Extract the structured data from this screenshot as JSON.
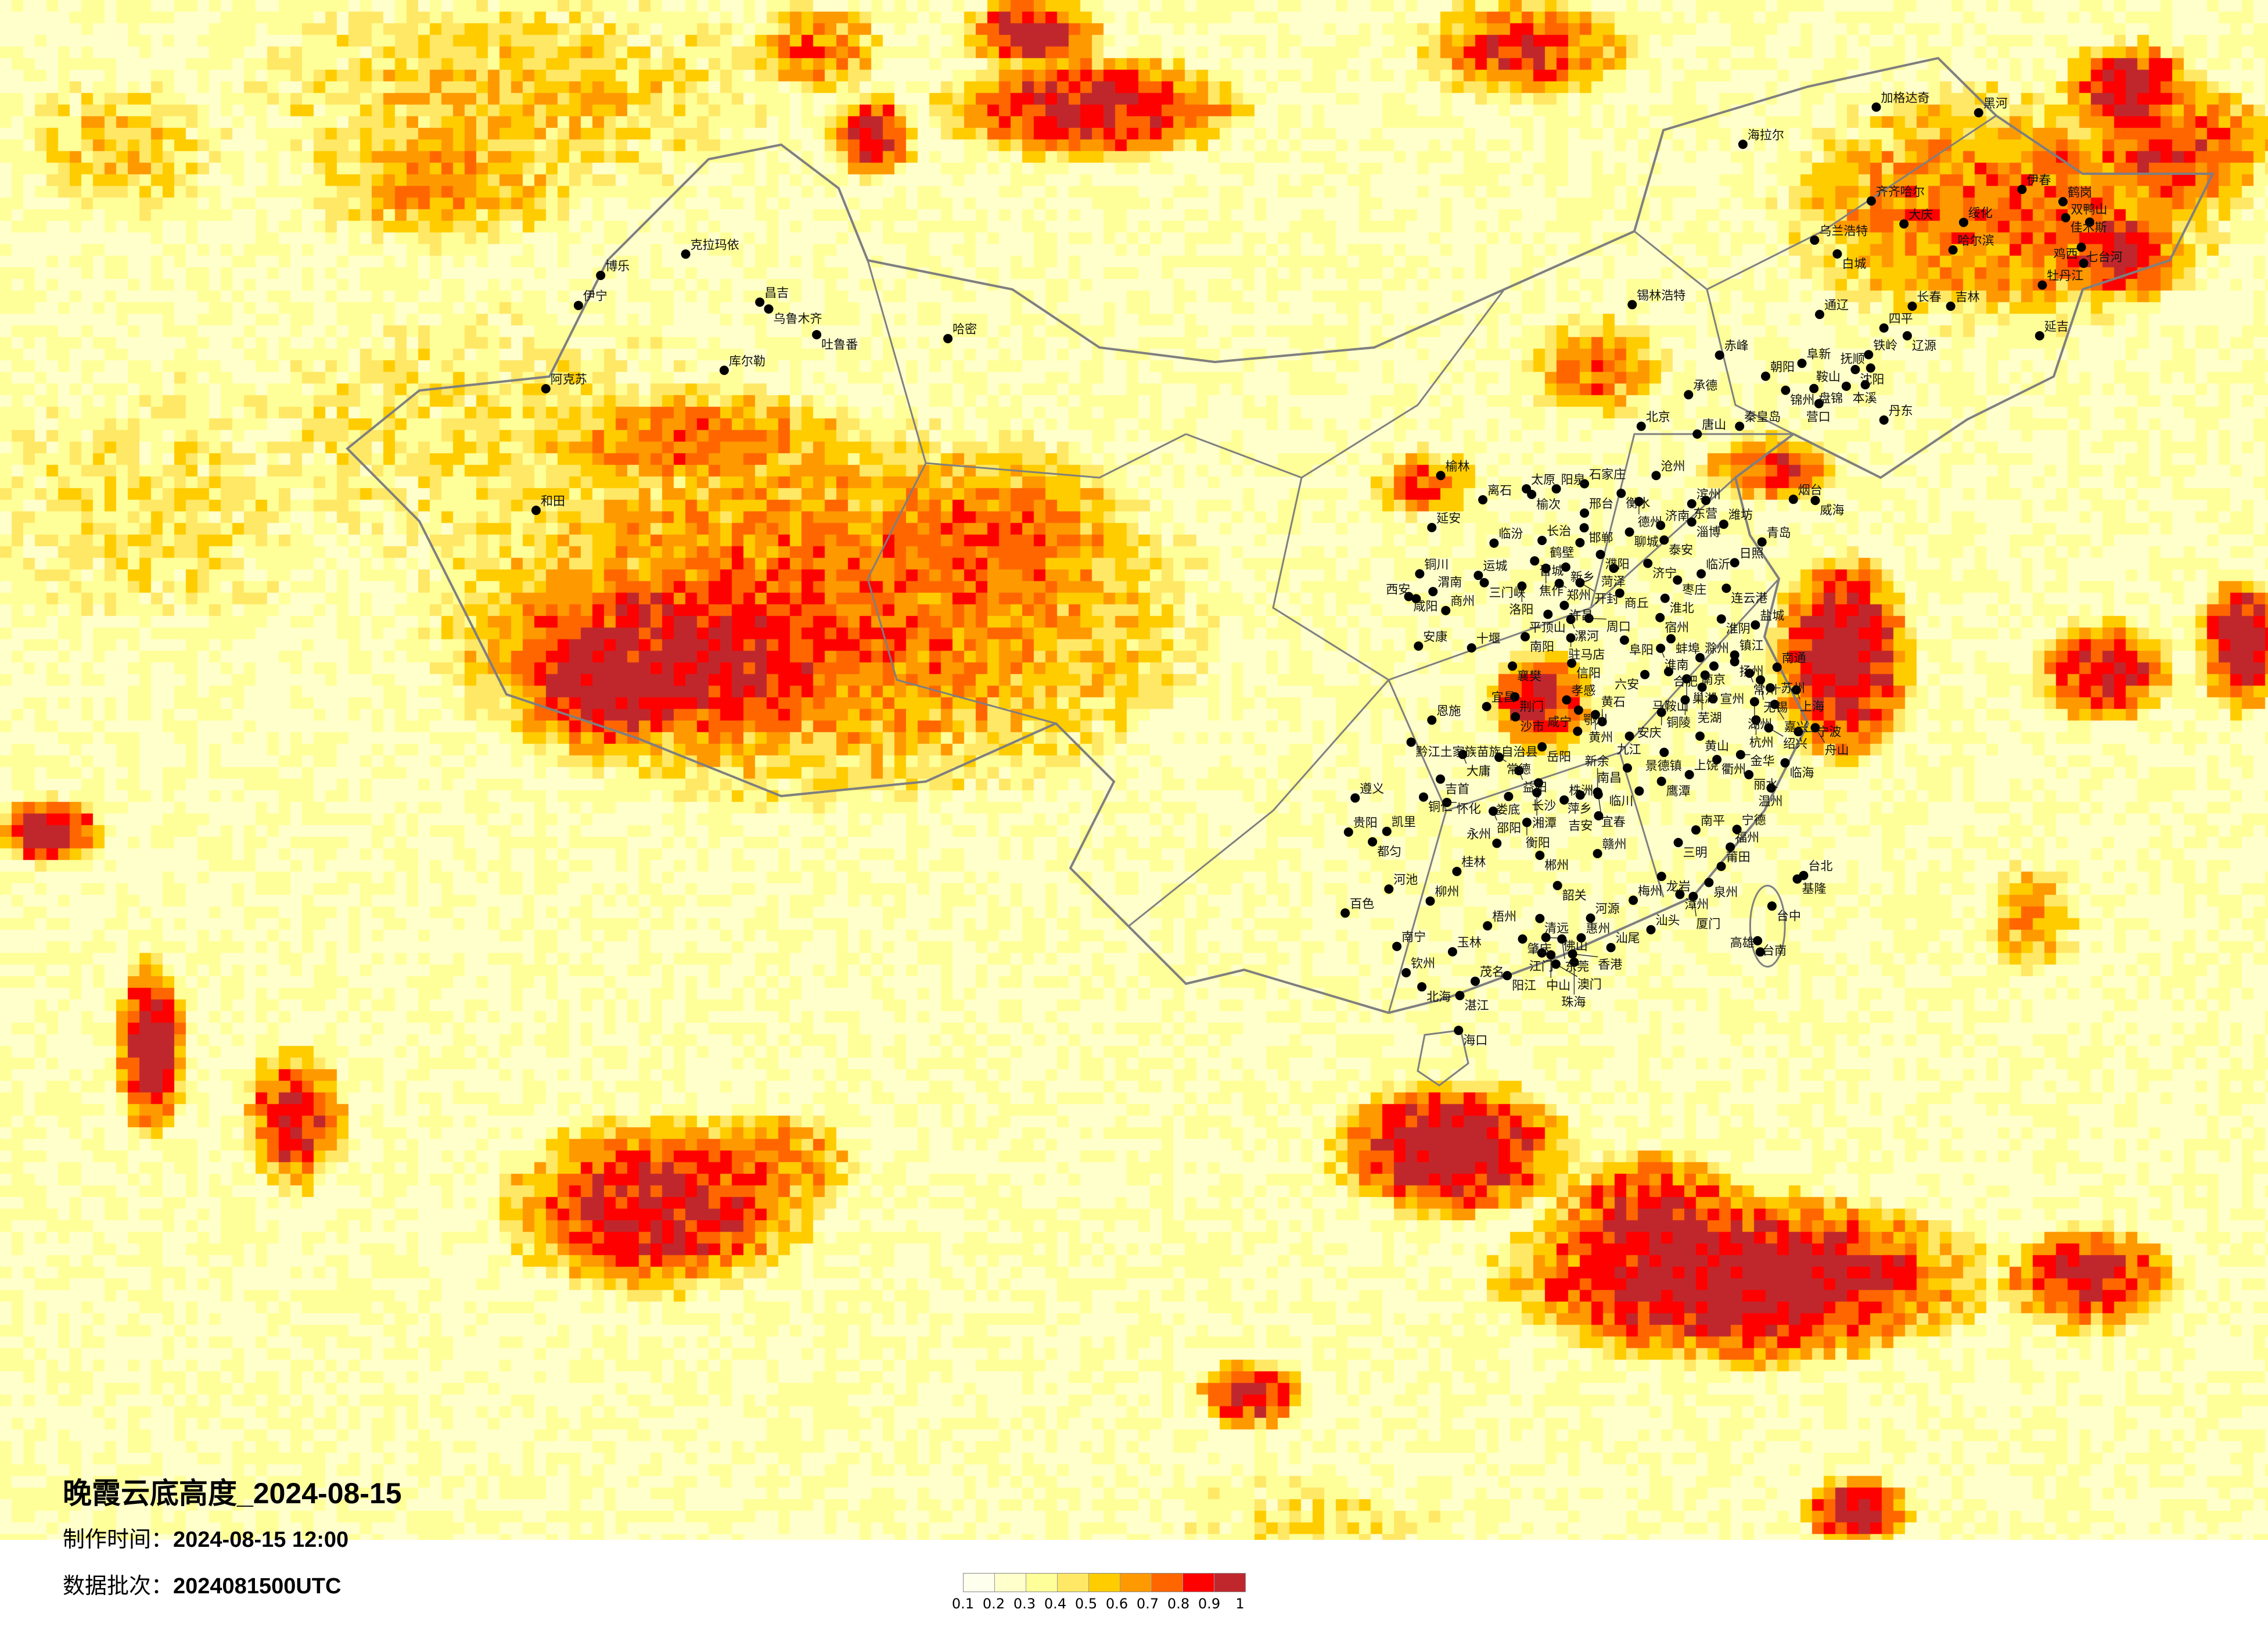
{
  "title": "晚霞云底高度_2024-08-15",
  "production_time": {
    "label": "制作时间：",
    "value": "2024-08-15 12:00"
  },
  "data_batch": {
    "label": "数据批次：",
    "value": "2024081500UTC"
  },
  "legend": {
    "colors": [
      "#ffffee",
      "#ffffcc",
      "#ffff99",
      "#ffe866",
      "#ffcc00",
      "#ff9900",
      "#ff6600",
      "#ff0000",
      "#c0272d"
    ],
    "labels": [
      "0.1",
      "0.2",
      "0.3",
      "0.4",
      "0.5",
      "0.6",
      "0.7",
      "0.8",
      "0.9",
      "1"
    ]
  },
  "map": {
    "border_color": "#7f7f7f",
    "city_marker": "black-dot",
    "cities": [
      "克拉玛依",
      "博乐",
      "伊宁",
      "昌吉",
      "乌鲁木齐",
      "吐鲁番",
      "哈密",
      "库尔勒",
      "阿克苏",
      "和田",
      "加格达奇",
      "黑河",
      "海拉尔",
      "伊春",
      "齐齐哈尔",
      "大庆",
      "绥化",
      "鹤岗",
      "佳木斯",
      "双鸭山",
      "乌兰浩特",
      "白城",
      "哈尔滨",
      "七台河",
      "鸡西",
      "牡丹江",
      "锡林浩特",
      "长春",
      "吉林",
      "通辽",
      "四平",
      "辽源",
      "延吉",
      "赤峰",
      "铁岭",
      "阜新",
      "沈阳",
      "抚顺",
      "朝阳",
      "本溪",
      "鞍山",
      "锦州",
      "盘锦",
      "承德",
      "营口",
      "丹东",
      "北京",
      "秦皇岛",
      "唐山",
      "榆林",
      "太原",
      "榆次",
      "阳泉",
      "石家庄",
      "沧州",
      "衡水",
      "离石",
      "德州",
      "滨州",
      "东营",
      "烟台",
      "威海",
      "邢台",
      "延安",
      "邯郸",
      "淄博",
      "潍坊",
      "济南",
      "聊城",
      "泰安",
      "临汾",
      "长治",
      "鹤壁",
      "青岛",
      "晋城",
      "新乡",
      "焦作",
      "濮阳",
      "菏泽",
      "济宁",
      "日照",
      "临沂",
      "枣庄",
      "铜川",
      "运城",
      "三门峡",
      "洛阳",
      "郑州",
      "开封",
      "商丘",
      "连云港",
      "渭南",
      "咸阳",
      "西安",
      "淮北",
      "许昌",
      "商州",
      "宿州",
      "平顶山",
      "漯河",
      "周口",
      "淮阴",
      "盐城",
      "南阳",
      "驻马店",
      "阜阳",
      "蚌埠",
      "淮南",
      "安康",
      "十堰",
      "滁州",
      "镇江",
      "扬州",
      "南通",
      "信阳",
      "襄樊",
      "南京",
      "常州",
      "合肥",
      "六安",
      "巢湖",
      "无锡",
      "马鞍山",
      "芜湖",
      "苏州",
      "上海",
      "宣州",
      "荆门",
      "孝感",
      "宜昌",
      "湖州",
      "嘉兴",
      "铜陵",
      "安庆",
      "鄂州",
      "黄州",
      "沙市",
      "恩施",
      "黄石",
      "杭州",
      "绍兴",
      "宁波",
      "舟山",
      "咸宁",
      "九江",
      "黄山",
      "黔江土家族苗族自治县",
      "岳阳",
      "景德镇",
      "大庸",
      "常德",
      "衢州",
      "金华",
      "临海",
      "南昌",
      "益阳",
      "上饶",
      "丽水",
      "鹰潭",
      "吉首",
      "长沙",
      "温州",
      "临川",
      "遵义",
      "铜仁",
      "怀化",
      "娄底",
      "湘潭",
      "株洲",
      "萍乡",
      "宜春",
      "新余",
      "邵阳",
      "吉安",
      "衡阳",
      "贵阳",
      "凯里",
      "都匀",
      "永州",
      "郴州",
      "赣州",
      "南平",
      "宁德",
      "三明",
      "福州",
      "莆田",
      "桂林",
      "龙岩",
      "泉州",
      "韶关",
      "河池",
      "漳州",
      "厦门",
      "柳州",
      "梅州",
      "百色",
      "清远",
      "河源",
      "梧州",
      "肇庆",
      "佛山",
      "东莞",
      "惠州",
      "南宁",
      "汕头",
      "汕尾",
      "玉林",
      "江门",
      "中山",
      "香港",
      "澳门",
      "珠海",
      "钦州",
      "茂名",
      "阳江",
      "北海",
      "湛江",
      "海口",
      "台北",
      "基隆",
      "台中",
      "台南",
      "高雄"
    ]
  }
}
